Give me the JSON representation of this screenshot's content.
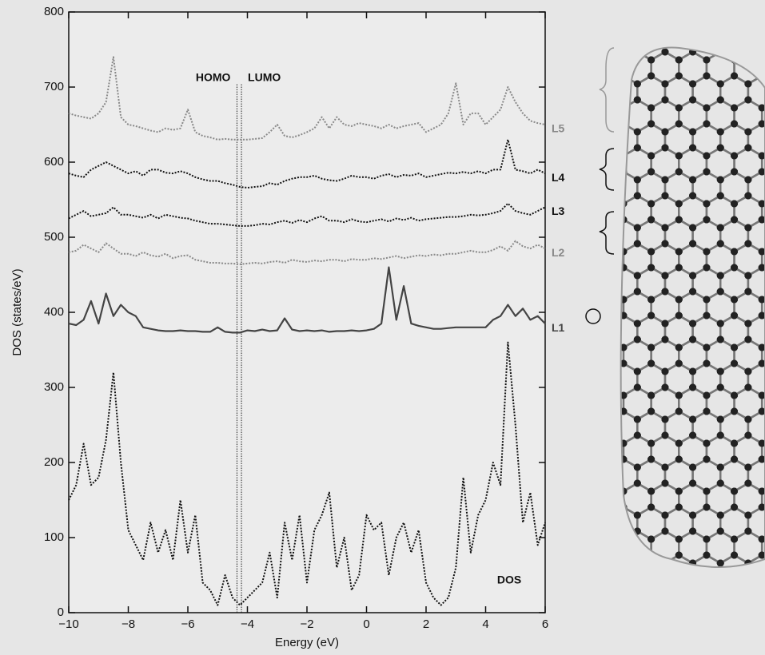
{
  "chart_data": {
    "type": "line",
    "xlabel": "Energy (eV)",
    "ylabel": "DOS (states/eV)",
    "xlim": [
      -10,
      6
    ],
    "ylim": [
      0,
      800
    ],
    "xticks": [
      {
        "value": -10,
        "label": "−10"
      },
      {
        "value": -8,
        "label": "−8"
      },
      {
        "value": -6,
        "label": "−6"
      },
      {
        "value": -4,
        "label": "−4"
      },
      {
        "value": -2,
        "label": "−2"
      },
      0,
      2,
      4,
      6
    ],
    "yticks": [
      0,
      100,
      200,
      300,
      400,
      500,
      600,
      700,
      800
    ],
    "markers": [
      {
        "label": "HOMO",
        "x": -4.35
      },
      {
        "label": "LUMO",
        "x": -4.2
      }
    ],
    "x": [
      -10,
      -9.75,
      -9.5,
      -9.25,
      -9,
      -8.75,
      -8.5,
      -8.25,
      -8,
      -7.75,
      -7.5,
      -7.25,
      -7,
      -6.75,
      -6.5,
      -6.25,
      -6,
      -5.75,
      -5.5,
      -5.25,
      -5,
      -4.75,
      -4.5,
      -4.25,
      -4,
      -3.75,
      -3.5,
      -3.25,
      -3,
      -2.75,
      -2.5,
      -2.25,
      -2,
      -1.75,
      -1.5,
      -1.25,
      -1,
      -0.75,
      -0.5,
      -0.25,
      0,
      0.25,
      0.5,
      0.75,
      1,
      1.25,
      1.5,
      1.75,
      2,
      2.25,
      2.5,
      2.75,
      3,
      3.25,
      3.5,
      3.75,
      4,
      4.25,
      4.5,
      4.75,
      5,
      5.25,
      5.5,
      5.75,
      6
    ],
    "series": [
      {
        "name": "DOS",
        "color": "#111111",
        "style": "dotted",
        "values": [
          150,
          170,
          225,
          170,
          180,
          230,
          320,
          200,
          110,
          90,
          70,
          120,
          80,
          110,
          70,
          150,
          80,
          130,
          40,
          30,
          10,
          50,
          20,
          10,
          20,
          30,
          40,
          80,
          20,
          120,
          70,
          130,
          40,
          110,
          130,
          160,
          60,
          100,
          30,
          50,
          130,
          110,
          120,
          50,
          100,
          120,
          80,
          110,
          40,
          20,
          10,
          20,
          60,
          180,
          80,
          130,
          150,
          200,
          170,
          360,
          250,
          120,
          160,
          90,
          120
        ]
      },
      {
        "name": "L1",
        "color": "#444444",
        "style": "solid",
        "values": [
          385,
          383,
          390,
          415,
          385,
          425,
          395,
          410,
          400,
          395,
          380,
          378,
          376,
          375,
          375,
          376,
          375,
          375,
          374,
          374,
          380,
          374,
          373,
          373,
          376,
          375,
          377,
          375,
          376,
          392,
          377,
          375,
          376,
          375,
          376,
          374,
          375,
          375,
          376,
          375,
          376,
          378,
          385,
          460,
          390,
          435,
          385,
          382,
          380,
          378,
          378,
          379,
          380,
          380,
          380,
          380,
          380,
          390,
          395,
          410,
          395,
          405,
          390,
          395,
          385
        ]
      },
      {
        "name": "L2",
        "color": "#888888",
        "style": "dotted",
        "values": [
          480,
          482,
          490,
          485,
          480,
          492,
          485,
          478,
          478,
          475,
          480,
          476,
          474,
          478,
          472,
          475,
          476,
          470,
          468,
          466,
          466,
          465,
          465,
          464,
          465,
          466,
          465,
          467,
          468,
          466,
          470,
          468,
          467,
          469,
          468,
          470,
          470,
          468,
          471,
          470,
          470,
          472,
          471,
          473,
          475,
          472,
          474,
          476,
          475,
          477,
          476,
          478,
          478,
          480,
          482,
          480,
          480,
          483,
          488,
          482,
          495,
          488,
          485,
          490,
          485
        ]
      },
      {
        "name": "L3",
        "color": "#111111",
        "style": "dotted",
        "values": [
          525,
          530,
          535,
          528,
          530,
          532,
          540,
          530,
          530,
          528,
          526,
          530,
          525,
          530,
          528,
          526,
          525,
          522,
          520,
          518,
          518,
          517,
          516,
          515,
          515,
          516,
          518,
          517,
          520,
          522,
          519,
          523,
          520,
          525,
          528,
          522,
          522,
          520,
          524,
          521,
          520,
          522,
          524,
          521,
          525,
          523,
          526,
          522,
          524,
          525,
          526,
          527,
          527,
          528,
          530,
          529,
          530,
          532,
          535,
          545,
          535,
          532,
          530,
          535,
          540
        ]
      },
      {
        "name": "L4",
        "color": "#111111",
        "style": "dotted",
        "values": [
          585,
          582,
          580,
          590,
          595,
          600,
          595,
          590,
          585,
          588,
          582,
          590,
          590,
          586,
          585,
          588,
          585,
          580,
          577,
          575,
          575,
          572,
          570,
          567,
          566,
          567,
          568,
          572,
          570,
          575,
          578,
          580,
          580,
          582,
          578,
          576,
          575,
          578,
          582,
          580,
          580,
          578,
          582,
          584,
          580,
          583,
          582,
          585,
          580,
          582,
          584,
          586,
          585,
          587,
          585,
          588,
          585,
          590,
          590,
          630,
          590,
          588,
          585,
          590,
          585
        ]
      },
      {
        "name": "L5",
        "color": "#888888",
        "style": "dotted",
        "values": [
          665,
          662,
          660,
          658,
          665,
          680,
          740,
          660,
          650,
          648,
          645,
          642,
          640,
          645,
          643,
          645,
          670,
          640,
          635,
          633,
          630,
          631,
          630,
          630,
          630,
          631,
          632,
          640,
          650,
          635,
          633,
          636,
          640,
          645,
          660,
          645,
          660,
          650,
          648,
          652,
          650,
          648,
          645,
          650,
          645,
          648,
          650,
          652,
          640,
          645,
          650,
          665,
          705,
          650,
          665,
          665,
          650,
          660,
          670,
          700,
          680,
          665,
          655,
          652,
          650
        ]
      }
    ]
  }
}
